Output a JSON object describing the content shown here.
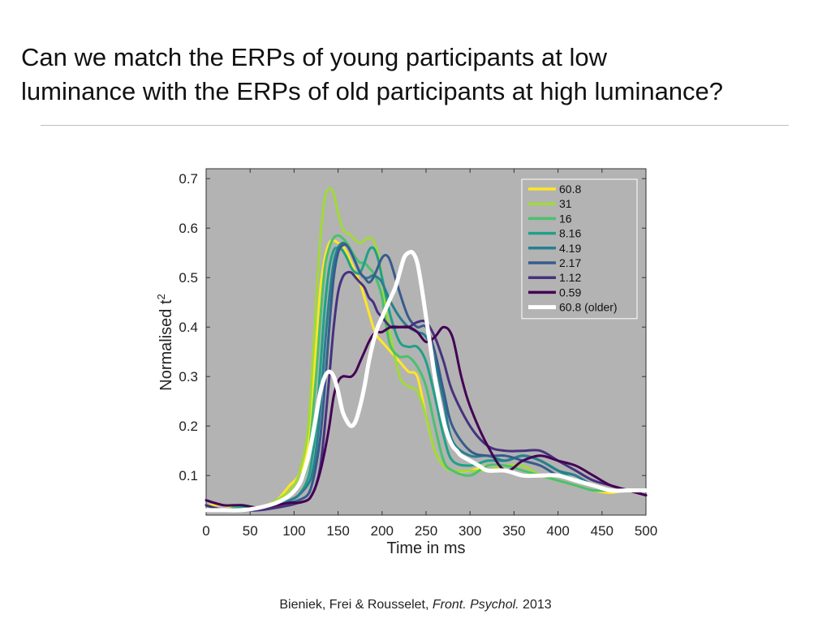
{
  "slide": {
    "title_line1": "Can we match the ERPs of young participants at low",
    "title_line2": "luminance with the ERPs of old participants at high luminance?",
    "citation_authors": "Bieniek, Frei & Rousselet, ",
    "citation_journal": "Front. Psychol.",
    "citation_year": " 2013"
  },
  "chart_data": {
    "type": "line",
    "title": "",
    "xlabel": "Time in ms",
    "ylabel": "Normalised t",
    "ylabel_superscript": "2",
    "xlim": [
      0,
      500
    ],
    "ylim": [
      0.02,
      0.72
    ],
    "xticks": [
      0,
      50,
      100,
      150,
      200,
      250,
      300,
      350,
      400,
      450,
      500
    ],
    "yticks": [
      0.1,
      0.2,
      0.3,
      0.4,
      0.5,
      0.6,
      0.7
    ],
    "grid": false,
    "background": "#b3b3b3",
    "legend_position": "top-right",
    "series": [
      {
        "name": "60.8",
        "color": "#fde725",
        "width": 3,
        "x": [
          0,
          20,
          40,
          60,
          80,
          95,
          105,
          115,
          120,
          125,
          130,
          135,
          140,
          145,
          150,
          155,
          160,
          165,
          170,
          175,
          180,
          185,
          190,
          195,
          200,
          210,
          220,
          230,
          240,
          250,
          260,
          270,
          280,
          300,
          320,
          340,
          360,
          380,
          400,
          420,
          440,
          460,
          480,
          500
        ],
        "y": [
          0.04,
          0.04,
          0.03,
          0.035,
          0.05,
          0.08,
          0.1,
          0.15,
          0.25,
          0.36,
          0.48,
          0.54,
          0.57,
          0.575,
          0.57,
          0.565,
          0.55,
          0.53,
          0.51,
          0.49,
          0.46,
          0.43,
          0.4,
          0.38,
          0.37,
          0.35,
          0.33,
          0.31,
          0.3,
          0.22,
          0.15,
          0.12,
          0.11,
          0.11,
          0.12,
          0.12,
          0.11,
          0.1,
          0.09,
          0.08,
          0.07,
          0.065,
          0.07,
          0.06
        ]
      },
      {
        "name": "31",
        "color": "#a0da39",
        "width": 3,
        "x": [
          0,
          20,
          40,
          60,
          80,
          95,
          105,
          115,
          120,
          125,
          130,
          135,
          140,
          145,
          150,
          155,
          160,
          165,
          170,
          175,
          180,
          185,
          190,
          195,
          200,
          205,
          210,
          220,
          230,
          240,
          250,
          260,
          270,
          280,
          300,
          320,
          340,
          360,
          380,
          400,
          420,
          440,
          460,
          480,
          500
        ],
        "y": [
          0.04,
          0.03,
          0.04,
          0.035,
          0.05,
          0.07,
          0.1,
          0.18,
          0.3,
          0.45,
          0.58,
          0.66,
          0.68,
          0.67,
          0.63,
          0.6,
          0.59,
          0.585,
          0.575,
          0.57,
          0.575,
          0.58,
          0.575,
          0.55,
          0.5,
          0.43,
          0.38,
          0.3,
          0.28,
          0.27,
          0.22,
          0.15,
          0.12,
          0.11,
          0.11,
          0.11,
          0.12,
          0.12,
          0.1,
          0.09,
          0.08,
          0.07,
          0.07,
          0.07,
          0.06
        ]
      },
      {
        "name": "16",
        "color": "#4ac16d",
        "width": 3,
        "x": [
          0,
          20,
          40,
          60,
          80,
          95,
          105,
          115,
          120,
          125,
          130,
          135,
          140,
          145,
          150,
          155,
          160,
          165,
          170,
          175,
          180,
          185,
          190,
          195,
          200,
          205,
          210,
          220,
          230,
          240,
          250,
          260,
          270,
          280,
          300,
          320,
          340,
          360,
          380,
          400,
          420,
          440,
          460,
          480,
          500
        ],
        "y": [
          0.04,
          0.03,
          0.04,
          0.035,
          0.04,
          0.06,
          0.08,
          0.12,
          0.2,
          0.3,
          0.42,
          0.52,
          0.56,
          0.58,
          0.585,
          0.58,
          0.57,
          0.555,
          0.54,
          0.53,
          0.53,
          0.52,
          0.51,
          0.49,
          0.46,
          0.4,
          0.36,
          0.34,
          0.34,
          0.32,
          0.28,
          0.2,
          0.13,
          0.11,
          0.1,
          0.12,
          0.12,
          0.11,
          0.1,
          0.09,
          0.08,
          0.07,
          0.07,
          0.07,
          0.06
        ]
      },
      {
        "name": "8.16",
        "color": "#1fa187",
        "width": 3,
        "x": [
          0,
          20,
          40,
          60,
          80,
          95,
          105,
          115,
          120,
          125,
          130,
          135,
          140,
          145,
          150,
          155,
          160,
          165,
          170,
          175,
          180,
          185,
          190,
          195,
          200,
          210,
          220,
          230,
          240,
          250,
          260,
          270,
          280,
          300,
          320,
          340,
          360,
          380,
          400,
          420,
          440,
          460,
          480,
          500
        ],
        "y": [
          0.04,
          0.03,
          0.035,
          0.035,
          0.04,
          0.05,
          0.06,
          0.09,
          0.13,
          0.2,
          0.32,
          0.44,
          0.52,
          0.555,
          0.56,
          0.555,
          0.54,
          0.52,
          0.51,
          0.51,
          0.53,
          0.555,
          0.56,
          0.54,
          0.5,
          0.42,
          0.37,
          0.36,
          0.36,
          0.33,
          0.26,
          0.18,
          0.13,
          0.12,
          0.13,
          0.13,
          0.14,
          0.13,
          0.11,
          0.09,
          0.08,
          0.07,
          0.07,
          0.07
        ]
      },
      {
        "name": "4.19",
        "color": "#277f8e",
        "width": 3,
        "x": [
          0,
          20,
          40,
          60,
          80,
          95,
          105,
          115,
          120,
          125,
          130,
          135,
          140,
          145,
          150,
          155,
          160,
          165,
          170,
          175,
          180,
          185,
          190,
          195,
          200,
          210,
          220,
          230,
          240,
          250,
          260,
          270,
          280,
          300,
          320,
          340,
          360,
          380,
          400,
          420,
          440,
          460,
          480,
          500
        ],
        "y": [
          0.03,
          0.03,
          0.03,
          0.035,
          0.04,
          0.05,
          0.06,
          0.08,
          0.1,
          0.15,
          0.24,
          0.36,
          0.46,
          0.53,
          0.56,
          0.57,
          0.565,
          0.55,
          0.53,
          0.51,
          0.5,
          0.5,
          0.505,
          0.5,
          0.49,
          0.45,
          0.42,
          0.4,
          0.39,
          0.38,
          0.33,
          0.25,
          0.17,
          0.14,
          0.14,
          0.13,
          0.14,
          0.13,
          0.11,
          0.1,
          0.08,
          0.07,
          0.07,
          0.07
        ]
      },
      {
        "name": "2.17",
        "color": "#365c8d",
        "width": 3,
        "x": [
          0,
          20,
          40,
          60,
          80,
          95,
          105,
          115,
          120,
          125,
          130,
          135,
          140,
          145,
          150,
          155,
          160,
          165,
          170,
          175,
          180,
          185,
          190,
          195,
          200,
          205,
          210,
          220,
          230,
          240,
          250,
          260,
          270,
          280,
          300,
          320,
          340,
          360,
          380,
          400,
          420,
          440,
          460,
          480,
          500
        ],
        "y": [
          0.04,
          0.03,
          0.03,
          0.03,
          0.04,
          0.045,
          0.05,
          0.06,
          0.08,
          0.12,
          0.18,
          0.28,
          0.4,
          0.5,
          0.55,
          0.565,
          0.565,
          0.55,
          0.53,
          0.51,
          0.5,
          0.49,
          0.5,
          0.52,
          0.54,
          0.545,
          0.53,
          0.47,
          0.42,
          0.4,
          0.4,
          0.35,
          0.27,
          0.2,
          0.15,
          0.14,
          0.14,
          0.13,
          0.12,
          0.1,
          0.09,
          0.08,
          0.07,
          0.07,
          0.06
        ]
      },
      {
        "name": "1.12",
        "color": "#46327e",
        "width": 3,
        "x": [
          0,
          20,
          40,
          60,
          80,
          95,
          105,
          115,
          120,
          125,
          130,
          135,
          140,
          145,
          150,
          155,
          160,
          165,
          170,
          175,
          180,
          185,
          190,
          195,
          200,
          210,
          220,
          230,
          240,
          250,
          260,
          270,
          280,
          300,
          320,
          340,
          360,
          380,
          400,
          420,
          440,
          460,
          480,
          500
        ],
        "y": [
          0.04,
          0.03,
          0.03,
          0.03,
          0.035,
          0.04,
          0.045,
          0.05,
          0.06,
          0.08,
          0.12,
          0.2,
          0.3,
          0.4,
          0.47,
          0.5,
          0.51,
          0.51,
          0.5,
          0.49,
          0.48,
          0.46,
          0.45,
          0.43,
          0.42,
          0.4,
          0.4,
          0.4,
          0.41,
          0.41,
          0.38,
          0.33,
          0.27,
          0.2,
          0.16,
          0.15,
          0.15,
          0.15,
          0.13,
          0.11,
          0.09,
          0.08,
          0.07,
          0.06
        ]
      },
      {
        "name": "0.59",
        "color": "#440154",
        "width": 3,
        "x": [
          0,
          20,
          40,
          60,
          80,
          95,
          105,
          115,
          120,
          125,
          130,
          135,
          140,
          145,
          150,
          155,
          160,
          165,
          170,
          175,
          180,
          185,
          190,
          195,
          200,
          210,
          220,
          230,
          240,
          250,
          260,
          270,
          280,
          290,
          300,
          320,
          340,
          360,
          380,
          400,
          420,
          440,
          460,
          480,
          500
        ],
        "y": [
          0.05,
          0.04,
          0.04,
          0.035,
          0.04,
          0.045,
          0.045,
          0.05,
          0.06,
          0.08,
          0.11,
          0.15,
          0.2,
          0.26,
          0.29,
          0.3,
          0.3,
          0.3,
          0.31,
          0.33,
          0.35,
          0.37,
          0.385,
          0.39,
          0.39,
          0.4,
          0.4,
          0.4,
          0.39,
          0.37,
          0.38,
          0.4,
          0.38,
          0.3,
          0.24,
          0.16,
          0.11,
          0.13,
          0.14,
          0.13,
          0.12,
          0.1,
          0.08,
          0.07,
          0.06
        ]
      },
      {
        "name": "60.8 (older)",
        "color": "#ffffff",
        "width": 5,
        "x": [
          0,
          20,
          40,
          60,
          80,
          95,
          105,
          110,
          115,
          120,
          125,
          130,
          135,
          140,
          145,
          150,
          155,
          160,
          165,
          170,
          175,
          180,
          185,
          190,
          195,
          200,
          205,
          210,
          215,
          220,
          225,
          230,
          235,
          240,
          245,
          250,
          255,
          260,
          265,
          270,
          275,
          280,
          285,
          290,
          300,
          310,
          320,
          340,
          360,
          380,
          400,
          420,
          440,
          460,
          480,
          500
        ],
        "y": [
          0.03,
          0.03,
          0.03,
          0.035,
          0.045,
          0.06,
          0.08,
          0.1,
          0.13,
          0.17,
          0.22,
          0.27,
          0.3,
          0.31,
          0.3,
          0.27,
          0.23,
          0.21,
          0.2,
          0.21,
          0.24,
          0.28,
          0.33,
          0.37,
          0.4,
          0.42,
          0.44,
          0.46,
          0.48,
          0.51,
          0.54,
          0.55,
          0.55,
          0.53,
          0.48,
          0.42,
          0.36,
          0.3,
          0.25,
          0.21,
          0.18,
          0.16,
          0.15,
          0.14,
          0.13,
          0.12,
          0.11,
          0.11,
          0.1,
          0.1,
          0.1,
          0.09,
          0.08,
          0.07,
          0.07,
          0.07
        ]
      }
    ]
  }
}
